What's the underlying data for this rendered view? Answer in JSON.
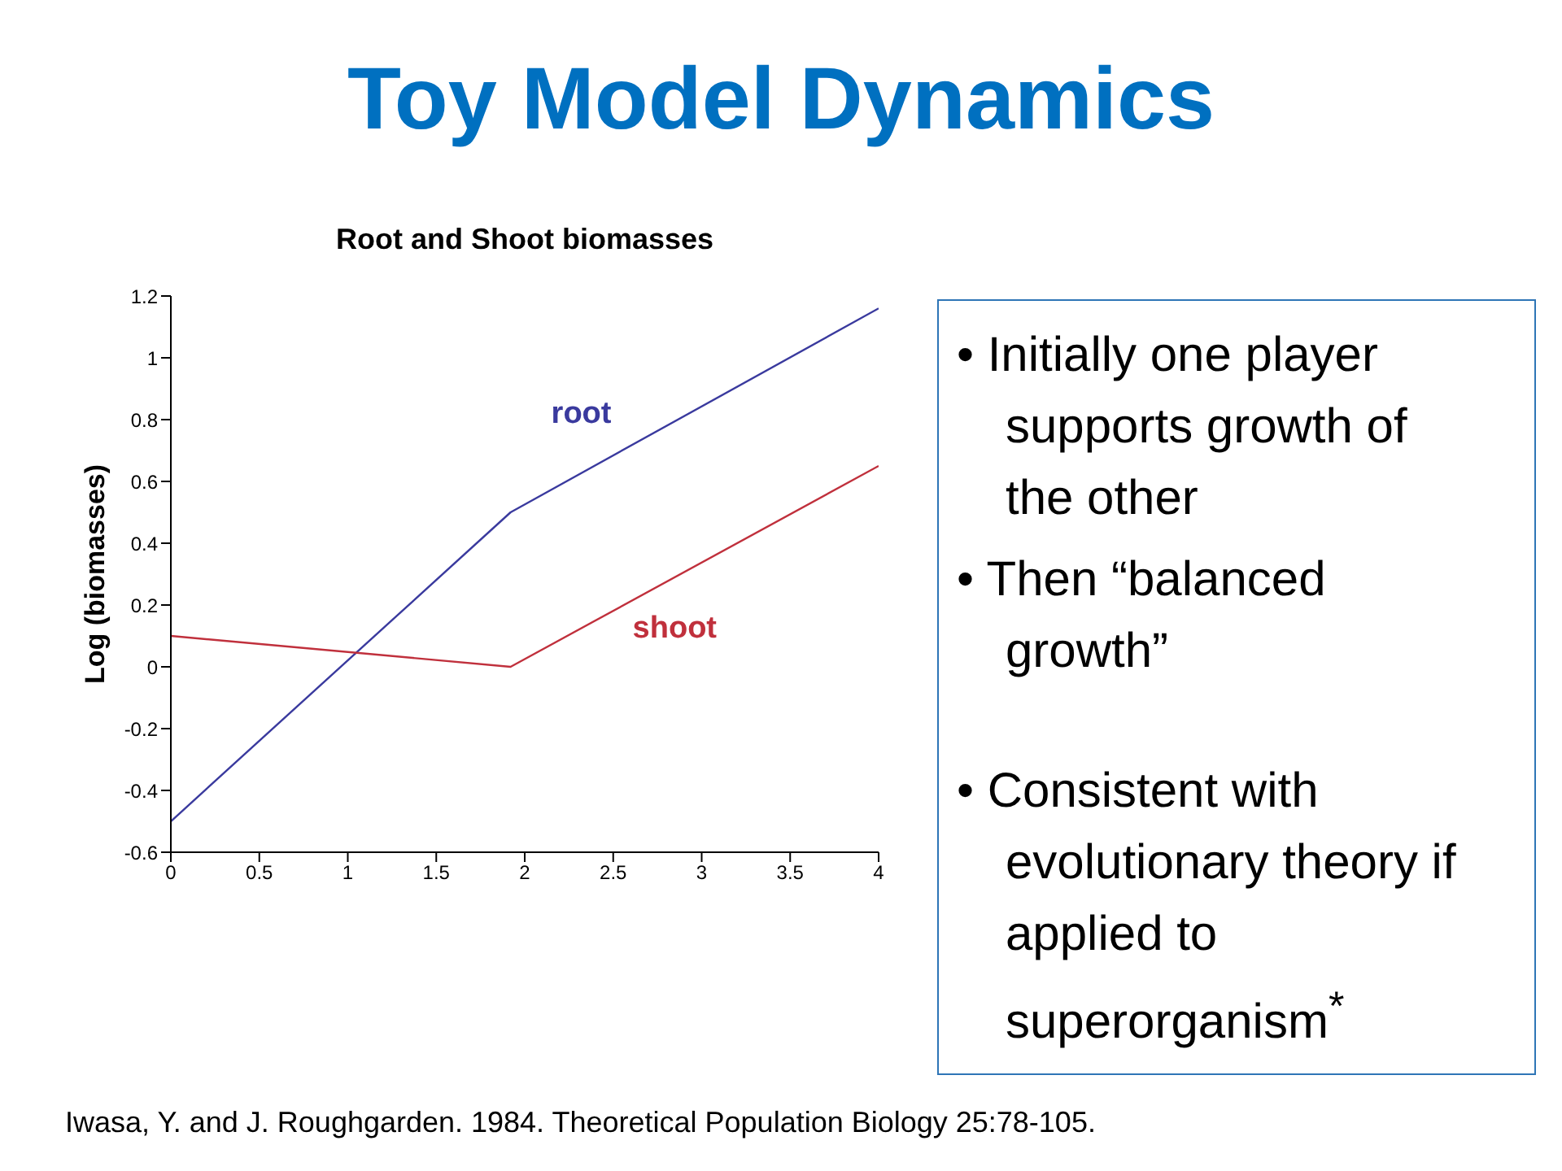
{
  "chart_data": {
    "type": "line",
    "title": "Toy Model Dynamics",
    "subtitle": "Root and Shoot biomasses",
    "ylabel": "Log (biomasses)",
    "series": [
      {
        "name": "root",
        "color": "#3a3a9e",
        "x": [
          0,
          1.92,
          4
        ],
        "values": [
          -0.5,
          0.5,
          1.16
        ]
      },
      {
        "name": "shoot",
        "color": "#c0303c",
        "x": [
          0,
          1.92,
          4
        ],
        "values": [
          0.1,
          0,
          0.65
        ]
      }
    ],
    "xlim": [
      0,
      4
    ],
    "xticks": [
      0,
      0.5,
      1,
      1.5,
      2,
      2.5,
      3,
      3.5,
      4
    ],
    "ylim": [
      -0.6,
      1.2
    ],
    "yticks": [
      -0.6,
      -0.4,
      -0.2,
      0,
      0.2,
      0.4,
      0.6,
      0.8,
      1,
      1.2
    ],
    "grid": false,
    "legend": false,
    "marker": "none",
    "line_style": "solid",
    "annotations": [
      "• Initially one player supports growth of the other",
      "• Then “balanced growth”",
      "• Consistent with evolutionary theory if applied to superorganism$^{*}$",
      "Iwasa, Y. and J. Roughgarden. 1984. Theoretical Population Biology 25:78-105."
    ]
  }
}
